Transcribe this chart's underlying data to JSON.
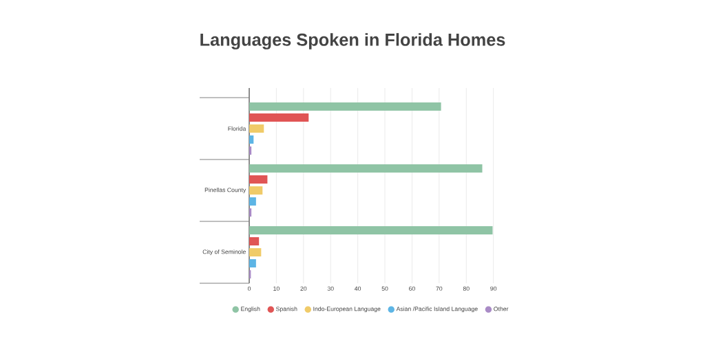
{
  "chart_data": {
    "type": "bar",
    "orientation": "horizontal",
    "title": "Languages Spoken in Florida Homes",
    "categories": [
      "Florida",
      "Pinellas County",
      "City of Seminole"
    ],
    "series": [
      {
        "name": "English",
        "color": "#8fc4a5",
        "values": [
          70.7,
          85.9,
          89.7
        ]
      },
      {
        "name": "Spanish",
        "color": "#e05555",
        "values": [
          21.9,
          6.7,
          3.6
        ]
      },
      {
        "name": "Indo-European Language",
        "color": "#f0cb69",
        "values": [
          5.4,
          4.9,
          4.4
        ]
      },
      {
        "name": "Asian /Pacific Island Language",
        "color": "#5db5e5",
        "values": [
          1.6,
          2.5,
          2.5
        ]
      },
      {
        "name": "Other",
        "color": "#a98bc6",
        "values": [
          0.8,
          0.8,
          0.6
        ]
      }
    ],
    "xlim": [
      0,
      90
    ],
    "xticks": [
      0,
      10,
      20,
      30,
      40,
      50,
      60,
      70,
      80,
      90
    ],
    "grid": "x",
    "legend": "bottom"
  }
}
